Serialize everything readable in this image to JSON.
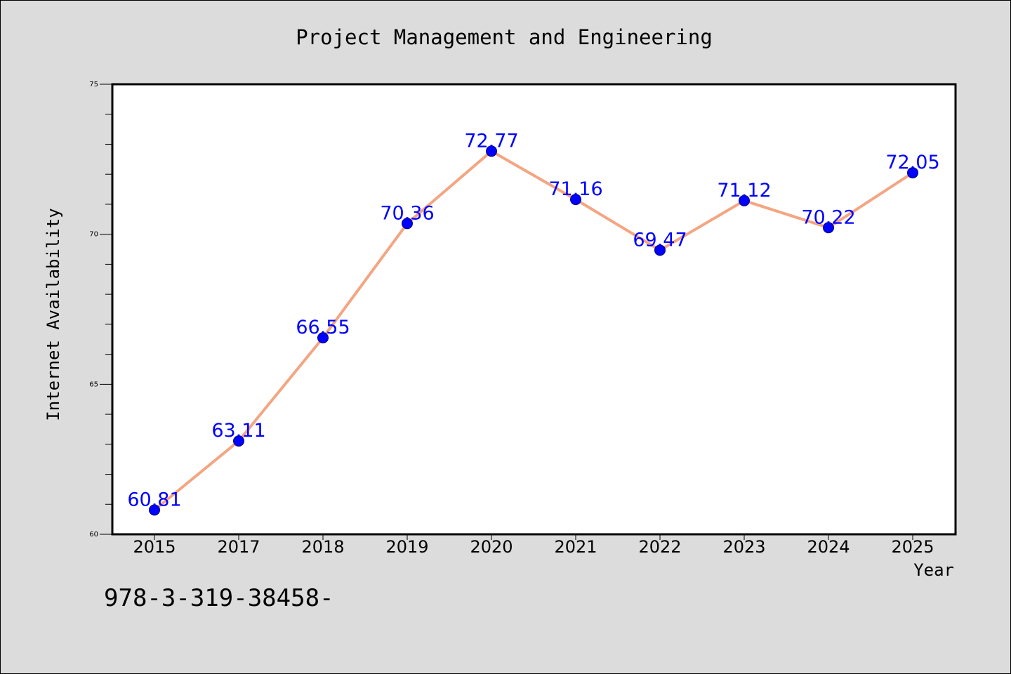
{
  "chart_data": {
    "type": "line",
    "title": "Project Management and Engineering",
    "xlabel": "Year",
    "ylabel": "Internet Availability",
    "categories": [
      "2015",
      "2017",
      "2018",
      "2019",
      "2020",
      "2021",
      "2022",
      "2023",
      "2024",
      "2025"
    ],
    "series": [
      {
        "values": [
          60.81,
          63.11,
          66.55,
          70.36,
          72.77,
          71.16,
          69.47,
          71.12,
          70.22,
          72.05
        ],
        "line_color": "#f4a582",
        "marker_color": "#0000ff"
      }
    ],
    "data_labels": [
      "60.81",
      "63.11",
      "66.55",
      "70.36",
      "72.77",
      "71.16",
      "69.47",
      "71.12",
      "70.22",
      "72.05"
    ],
    "ylim": [
      60,
      75
    ],
    "yticks": [
      "60",
      "65",
      "70",
      "75"
    ],
    "grid": false,
    "legend": "none"
  },
  "footer_text": "978-3-319-38458-",
  "colors": {
    "background": "#dcdcdc",
    "plot_area": "#ffffff",
    "data_label": "#0000ff"
  }
}
